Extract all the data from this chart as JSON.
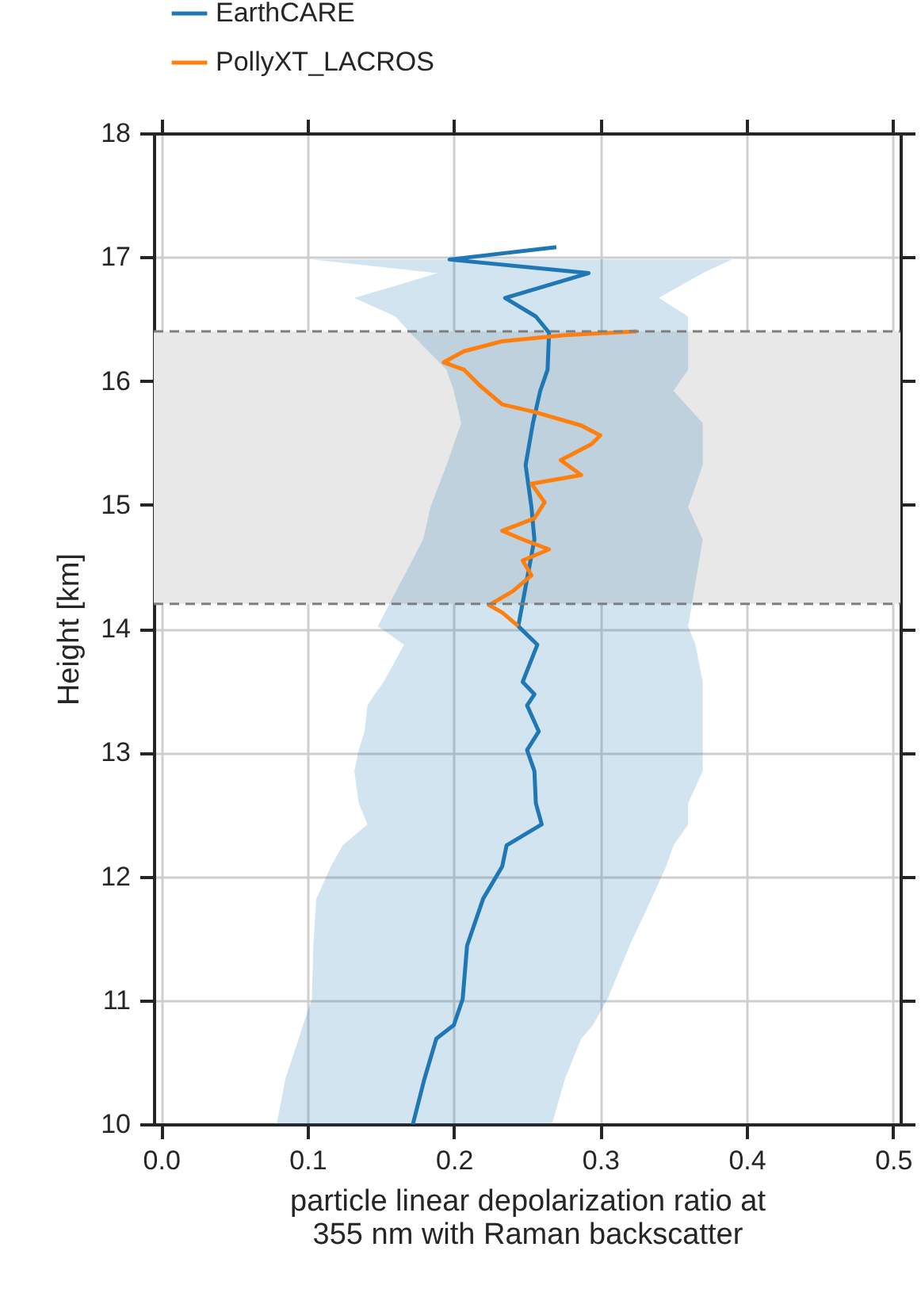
{
  "chart_data": {
    "type": "line",
    "orientation": "horizontal",
    "xlabel": "particle linear depolarization ratio at\n355 nm with Raman backscatter",
    "ylabel": "Height [km]",
    "xlim": [
      -0.005,
      0.505
    ],
    "xticks": [
      {
        "value": 0,
        "label": "0.0"
      },
      0.1,
      0.2,
      0.3,
      0.4,
      0.5
    ],
    "ylim": [
      10,
      18
    ],
    "yticks": [
      10,
      11,
      12,
      13,
      14,
      15,
      16,
      17,
      18
    ],
    "grid": true,
    "legend": "top left",
    "bands": [
      {
        "axis": "y",
        "from": 14.2,
        "to": 16.4,
        "color": "#e8e8e8"
      }
    ],
    "ref_lines": [
      {
        "axis": "y",
        "value": 14.2,
        "color": "#7f7f7f",
        "line_style": "dashed"
      },
      {
        "axis": "y",
        "value": 16.4,
        "color": "#7f7f7f",
        "line_style": "dashed"
      }
    ],
    "series": [
      {
        "name": "EarthCARE",
        "color": "#1f77b4",
        "x": [
          10.0,
          10.37,
          10.69,
          10.8,
          11.01,
          11.44,
          11.82,
          12.08,
          12.25,
          12.42,
          12.59,
          12.85,
          13.02,
          13.17,
          13.38,
          13.47,
          13.57,
          13.87,
          14.02,
          14.72,
          14.98,
          15.32,
          15.66,
          15.92,
          16.09,
          16.39,
          16.52,
          16.67,
          16.87,
          16.98,
          17.08
        ],
        "values": [
          0.172,
          0.18,
          0.188,
          0.2,
          0.206,
          0.209,
          0.22,
          0.233,
          0.236,
          0.26,
          0.256,
          0.255,
          0.25,
          0.258,
          0.25,
          0.255,
          0.247,
          0.257,
          0.244,
          0.255,
          0.253,
          0.249,
          0.254,
          0.259,
          0.264,
          0.265,
          0.256,
          0.235,
          0.292,
          0.197,
          0.27
        ],
        "lower": [
          0.079,
          0.085,
          0.094,
          0.097,
          0.103,
          0.104,
          0.106,
          0.116,
          0.124,
          0.141,
          0.135,
          0.132,
          0.135,
          0.139,
          0.141,
          0.146,
          0.152,
          0.166,
          0.148,
          0.179,
          0.184,
          0.195,
          0.205,
          0.2,
          0.195,
          0.17,
          0.16,
          0.132,
          0.189,
          0.103,
          null
        ],
        "upper": [
          0.267,
          0.276,
          0.287,
          0.295,
          0.305,
          0.32,
          0.335,
          0.345,
          0.35,
          0.36,
          0.36,
          0.37,
          0.37,
          0.37,
          0.37,
          0.37,
          0.37,
          0.365,
          0.36,
          0.37,
          0.36,
          0.37,
          0.37,
          0.35,
          0.36,
          0.36,
          0.36,
          0.34,
          0.37,
          0.39,
          null
        ]
      },
      {
        "name": "PollyXT_LACROS",
        "color": "#ff7f0e",
        "x": [
          14.02,
          14.13,
          14.19,
          14.3,
          14.43,
          14.55,
          14.64,
          14.72,
          14.79,
          14.89,
          15.02,
          15.17,
          15.24,
          15.36,
          15.49,
          15.56,
          15.64,
          15.75,
          15.81,
          15.96,
          16.09,
          16.15,
          16.24,
          16.32,
          16.37,
          16.4
        ],
        "values": [
          0.244,
          0.233,
          0.224,
          0.24,
          0.253,
          0.247,
          0.265,
          0.247,
          0.233,
          0.255,
          0.262,
          0.253,
          0.287,
          0.273,
          0.294,
          0.3,
          0.287,
          0.255,
          0.233,
          0.218,
          0.207,
          0.193,
          0.207,
          0.233,
          0.276,
          0.325
        ]
      }
    ]
  }
}
